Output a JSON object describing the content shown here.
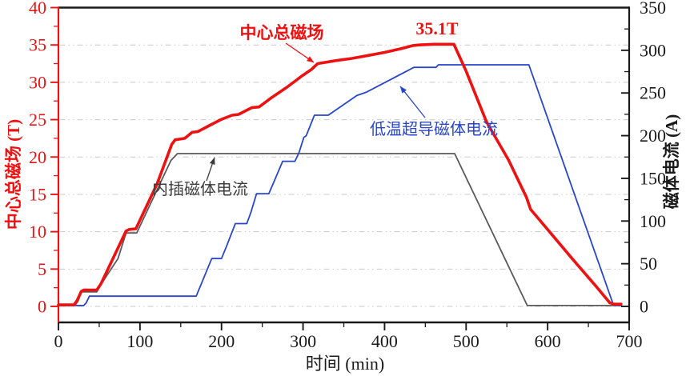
{
  "chart_data": {
    "type": "line",
    "title": "",
    "legend": "none (inline annotated labels)",
    "x_axis": {
      "label": "时间 (min)",
      "range": [
        0,
        700
      ],
      "major_tick": 100,
      "minor_tick": 50,
      "tick_labels": [
        0,
        100,
        200,
        300,
        400,
        500,
        600,
        700
      ],
      "color": "#1a1a1a"
    },
    "y_axis_left": {
      "label": "中心总磁场 (T)",
      "range": [
        0,
        40
      ],
      "major_tick": 5,
      "minor_tick": 2.5,
      "tick_labels": [
        0,
        5,
        10,
        15,
        20,
        25,
        30,
        35,
        40
      ],
      "color": "#ee1111"
    },
    "y_axis_right": {
      "label": "磁体电流 (A)",
      "range": [
        0,
        350
      ],
      "major_tick": 50,
      "minor_tick": 25,
      "tick_labels": [
        0,
        50,
        100,
        150,
        200,
        250,
        300,
        350
      ],
      "color": "#1a1a1a"
    },
    "grid": {
      "horizontal": true,
      "vertical": false,
      "style": "dash-dot",
      "color": "#c9c9c9",
      "at_left_values": [
        0,
        5,
        10,
        15,
        20,
        25,
        30,
        35
      ]
    },
    "series": [
      {
        "id": "insert-magnet-current",
        "name": "内插磁体电流",
        "axis": "right",
        "unit": "A",
        "color": "#5a5a5a",
        "width": 1.8,
        "points": [
          [
            0,
            1
          ],
          [
            20,
            1
          ],
          [
            24,
            6
          ],
          [
            28,
            17
          ],
          [
            47,
            17
          ],
          [
            53,
            27
          ],
          [
            73,
            56
          ],
          [
            83,
            86
          ],
          [
            96,
            86
          ],
          [
            138,
            171
          ],
          [
            146,
            179
          ],
          [
            486,
            179
          ],
          [
            575,
            1
          ],
          [
            690,
            1
          ]
        ]
      },
      {
        "id": "lts-magnet-current",
        "name": "低温超导磁体电流",
        "axis": "right",
        "unit": "A",
        "color": "#2946cb",
        "width": 1.8,
        "points": [
          [
            0,
            1
          ],
          [
            31,
            1
          ],
          [
            34,
            4
          ],
          [
            38,
            12
          ],
          [
            169,
            12
          ],
          [
            175,
            26
          ],
          [
            188,
            56
          ],
          [
            200,
            56
          ],
          [
            206,
            70
          ],
          [
            217,
            97
          ],
          [
            231,
            97
          ],
          [
            236,
            110
          ],
          [
            243,
            132
          ],
          [
            258,
            132
          ],
          [
            263,
            143
          ],
          [
            275,
            170
          ],
          [
            290,
            170
          ],
          [
            295,
            180
          ],
          [
            301,
            198
          ],
          [
            304,
            200
          ],
          [
            314,
            224
          ],
          [
            331,
            224
          ],
          [
            366,
            247
          ],
          [
            378,
            251
          ],
          [
            436,
            280
          ],
          [
            463,
            280
          ],
          [
            466,
            283
          ],
          [
            577,
            283
          ],
          [
            681,
            1
          ],
          [
            690,
            1
          ]
        ]
      },
      {
        "id": "center-total-field",
        "name": "中心总磁场",
        "axis": "left",
        "unit": "T",
        "color": "#ee1111",
        "width": 3.6,
        "points": [
          [
            0,
            0.2
          ],
          [
            19,
            0.2
          ],
          [
            23,
            0.8
          ],
          [
            28,
            2.0
          ],
          [
            31,
            2.2
          ],
          [
            47,
            2.2
          ],
          [
            52,
            3.0
          ],
          [
            83,
            10.1
          ],
          [
            87,
            10.3
          ],
          [
            95,
            10.4
          ],
          [
            121,
            16.4
          ],
          [
            139,
            21.7
          ],
          [
            143,
            22.3
          ],
          [
            155,
            22.5
          ],
          [
            164,
            23.3
          ],
          [
            171,
            23.4
          ],
          [
            185,
            24.2
          ],
          [
            199,
            25.0
          ],
          [
            213,
            25.6
          ],
          [
            221,
            25.7
          ],
          [
            237,
            26.6
          ],
          [
            246,
            26.7
          ],
          [
            262,
            28.0
          ],
          [
            281,
            29.4
          ],
          [
            298,
            30.8
          ],
          [
            310,
            31.7
          ],
          [
            318,
            32.5
          ],
          [
            340,
            32.9
          ],
          [
            360,
            33.2
          ],
          [
            380,
            33.6
          ],
          [
            400,
            34.0
          ],
          [
            420,
            34.5
          ],
          [
            434,
            34.9
          ],
          [
            442,
            35.0
          ],
          [
            460,
            35.1
          ],
          [
            485,
            35.1
          ],
          [
            500,
            31.5
          ],
          [
            525,
            24.7
          ],
          [
            552,
            19.6
          ],
          [
            574,
            14.6
          ],
          [
            579,
            13.0
          ],
          [
            600,
            10.3
          ],
          [
            630,
            6.4
          ],
          [
            660,
            2.6
          ],
          [
            676,
            0.5
          ],
          [
            681,
            0.3
          ],
          [
            690,
            0.3
          ]
        ]
      }
    ],
    "annotations": [
      {
        "id": "center-field-label",
        "text": "中心总磁场",
        "color": "#ee1111",
        "bold": true,
        "font_size": 21,
        "x": 352,
        "y": 48,
        "arrow": {
          "from": [
            357,
            54
          ],
          "to": [
            392,
            78
          ]
        }
      },
      {
        "id": "peak-value-label",
        "text": "35.1T",
        "color": "#ee1111",
        "bold": true,
        "font_size": 22,
        "x": 546,
        "y": 43
      },
      {
        "id": "lts-current-label",
        "text": "低温超导磁体电流",
        "color": "#2946cb",
        "bold": false,
        "font_size": 20,
        "x": 542,
        "y": 168,
        "arrow": {
          "from": [
            531,
            147
          ],
          "to": [
            500,
            108
          ]
        }
      },
      {
        "id": "insert-current-label",
        "text": "内插磁体电流",
        "color": "#3d3d3d",
        "bold": false,
        "font_size": 20,
        "x": 250,
        "y": 243,
        "arrow": {
          "from": [
            258,
            226
          ],
          "to": [
            268,
            197
          ]
        }
      }
    ],
    "peak_annotation_value": "35.1T"
  }
}
